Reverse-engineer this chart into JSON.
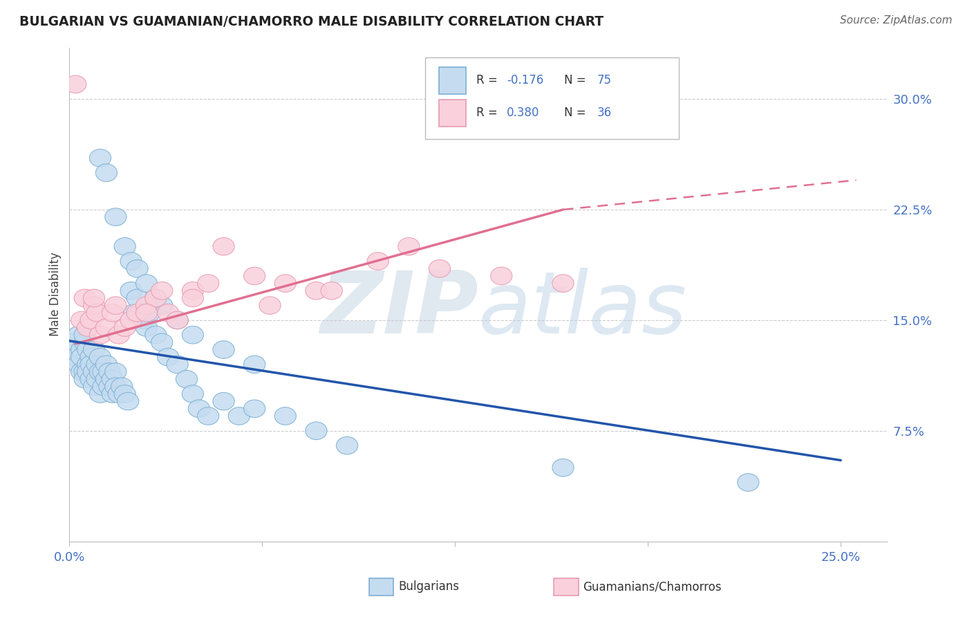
{
  "title": "BULGARIAN VS GUAMANIAN/CHAMORRO MALE DISABILITY CORRELATION CHART",
  "source": "Source: ZipAtlas.com",
  "ylabel": "Male Disability",
  "xlim": [
    0.0,
    0.265
  ],
  "ylim": [
    0.0,
    0.335
  ],
  "x_tick_positions": [
    0.0,
    0.0625,
    0.125,
    0.1875,
    0.25
  ],
  "x_tick_labels": [
    "0.0%",
    "",
    "",
    "",
    "25.0%"
  ],
  "y_tick_positions": [
    0.075,
    0.15,
    0.225,
    0.3
  ],
  "y_tick_labels": [
    "7.5%",
    "15.0%",
    "22.5%",
    "30.0%"
  ],
  "blue_face": "#c5dcf0",
  "blue_edge": "#7bafd4",
  "pink_face": "#f9d0dc",
  "pink_edge": "#e899b0",
  "blue_line_color": "#2255aa",
  "pink_line_color": "#e07090",
  "tick_color": "#4472c4",
  "grid_color": "#cccccc",
  "title_color": "#222222",
  "source_color": "#666666",
  "ylabel_color": "#444444",
  "r_blue_text": "-0.176",
  "n_blue_text": "75",
  "r_pink_text": "0.380",
  "n_pink_text": "36",
  "watermark_color": "#e0e8f0",
  "blue_x": [
    0.001,
    0.002,
    0.002,
    0.003,
    0.003,
    0.004,
    0.004,
    0.004,
    0.005,
    0.005,
    0.005,
    0.005,
    0.006,
    0.006,
    0.006,
    0.007,
    0.007,
    0.007,
    0.008,
    0.008,
    0.008,
    0.009,
    0.009,
    0.01,
    0.01,
    0.01,
    0.011,
    0.011,
    0.012,
    0.012,
    0.013,
    0.013,
    0.014,
    0.014,
    0.015,
    0.015,
    0.016,
    0.017,
    0.018,
    0.019,
    0.02,
    0.021,
    0.022,
    0.024,
    0.025,
    0.026,
    0.028,
    0.03,
    0.032,
    0.035,
    0.038,
    0.04,
    0.042,
    0.045,
    0.05,
    0.055,
    0.06,
    0.07,
    0.08,
    0.09,
    0.01,
    0.012,
    0.015,
    0.018,
    0.02,
    0.022,
    0.025,
    0.028,
    0.03,
    0.035,
    0.04,
    0.05,
    0.06,
    0.16,
    0.22
  ],
  "blue_y": [
    0.135,
    0.13,
    0.125,
    0.14,
    0.12,
    0.13,
    0.125,
    0.115,
    0.135,
    0.14,
    0.115,
    0.11,
    0.12,
    0.13,
    0.115,
    0.125,
    0.12,
    0.11,
    0.13,
    0.115,
    0.105,
    0.12,
    0.11,
    0.125,
    0.115,
    0.1,
    0.115,
    0.105,
    0.12,
    0.11,
    0.115,
    0.105,
    0.11,
    0.1,
    0.115,
    0.105,
    0.1,
    0.105,
    0.1,
    0.095,
    0.17,
    0.155,
    0.165,
    0.15,
    0.145,
    0.155,
    0.14,
    0.135,
    0.125,
    0.12,
    0.11,
    0.1,
    0.09,
    0.085,
    0.095,
    0.085,
    0.09,
    0.085,
    0.075,
    0.065,
    0.26,
    0.25,
    0.22,
    0.2,
    0.19,
    0.185,
    0.175,
    0.165,
    0.16,
    0.15,
    0.14,
    0.13,
    0.12,
    0.05,
    0.04
  ],
  "pink_x": [
    0.002,
    0.004,
    0.005,
    0.006,
    0.007,
    0.008,
    0.009,
    0.01,
    0.012,
    0.014,
    0.016,
    0.018,
    0.02,
    0.022,
    0.025,
    0.028,
    0.03,
    0.032,
    0.035,
    0.04,
    0.045,
    0.05,
    0.06,
    0.07,
    0.08,
    0.1,
    0.12,
    0.14,
    0.16,
    0.008,
    0.015,
    0.025,
    0.04,
    0.065,
    0.085,
    0.11
  ],
  "pink_y": [
    0.31,
    0.15,
    0.165,
    0.145,
    0.15,
    0.16,
    0.155,
    0.14,
    0.145,
    0.155,
    0.14,
    0.145,
    0.15,
    0.155,
    0.16,
    0.165,
    0.17,
    0.155,
    0.15,
    0.17,
    0.175,
    0.2,
    0.18,
    0.175,
    0.17,
    0.19,
    0.185,
    0.18,
    0.175,
    0.165,
    0.16,
    0.155,
    0.165,
    0.16,
    0.17,
    0.2
  ]
}
